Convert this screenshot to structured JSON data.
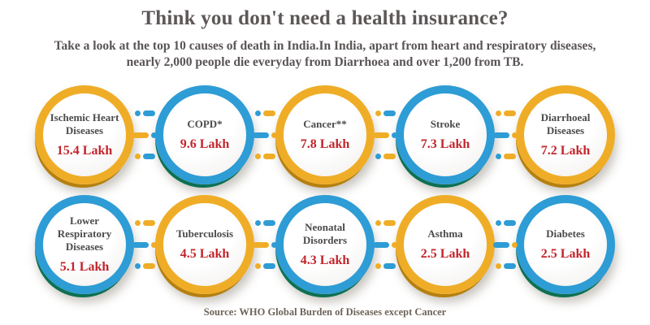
{
  "title": "Think you don't need a health insurance?",
  "subtitle": "Take a look at the top 10 causes of death in India.In India, apart from heart and respiratory diseases, nearly 2,000 people die everyday from Diarrhoea and over 1,200 from TB.",
  "source": "Source: WHO Global Burden of Diseases except Cancer",
  "colors": {
    "ring_yellow": "#EFAD27",
    "ring_blue": "#2E9CD5",
    "yellow_shade": "#B5800F",
    "blue_shade": "#0E7052",
    "value_red": "#C2252C",
    "name_gray": "#4C4949",
    "title_gray": "#5D5757",
    "source_brown": "#6E6359"
  },
  "causes": [
    {
      "name": "Ischemic Heart Diseases",
      "value": "15.4 Lakh",
      "ring": "yellow"
    },
    {
      "name": "COPD*",
      "value": "9.6 Lakh",
      "ring": "blue"
    },
    {
      "name": "Cancer**",
      "value": "7.8 Lakh",
      "ring": "yellow"
    },
    {
      "name": "Stroke",
      "value": "7.3 Lakh",
      "ring": "blue"
    },
    {
      "name": "Diarrhoeal Diseases",
      "value": "7.2 Lakh",
      "ring": "yellow"
    },
    {
      "name": "Lower Respiratory Diseases",
      "value": "5.1 Lakh",
      "ring": "blue"
    },
    {
      "name": "Tuberculosis",
      "value": "4.5 Lakh",
      "ring": "yellow"
    },
    {
      "name": "Neonatal Disorders",
      "value": "4.3 Lakh",
      "ring": "blue"
    },
    {
      "name": "Asthma",
      "value": "2.5 Lakh",
      "ring": "yellow"
    },
    {
      "name": "Diabetes",
      "value": "2.5 Lakh",
      "ring": "blue"
    }
  ],
  "chart_data": {
    "type": "table",
    "title": "Think you don't need a health insurance?",
    "subtitle": "Take a look at the top 10 causes of death in India.In India, apart from heart and respiratory diseases, nearly 2,000 people die everyday from Diarrhoea and over 1,200 from TB.",
    "categories": [
      "Ischemic Heart Diseases",
      "COPD*",
      "Cancer**",
      "Stroke",
      "Diarrhoeal Diseases",
      "Lower Respiratory Diseases",
      "Tuberculosis",
      "Neonatal Disorders",
      "Asthma",
      "Diabetes"
    ],
    "values": [
      15.4,
      9.6,
      7.8,
      7.3,
      7.2,
      5.1,
      4.5,
      4.3,
      2.5,
      2.5
    ],
    "unit": "Lakh deaths",
    "source": "Source: WHO Global Burden of Diseases except Cancer",
    "layout": "two rows of five circles, alternating yellow/blue rings, dot-dash connectors"
  }
}
